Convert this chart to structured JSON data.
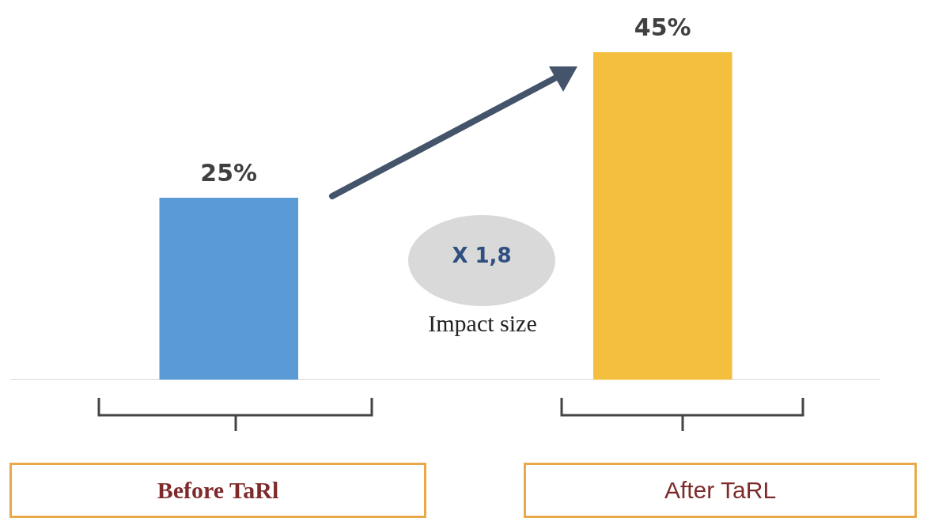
{
  "chart_data": {
    "type": "bar",
    "categories": [
      "Before TaRl",
      "After TaRL"
    ],
    "values": [
      25,
      45
    ],
    "colors": [
      "#5b9bd5",
      "#f4bf3f"
    ],
    "value_labels": [
      "25%",
      "45%"
    ],
    "annotations": [
      "X 1,8",
      "Impact size"
    ]
  }
}
